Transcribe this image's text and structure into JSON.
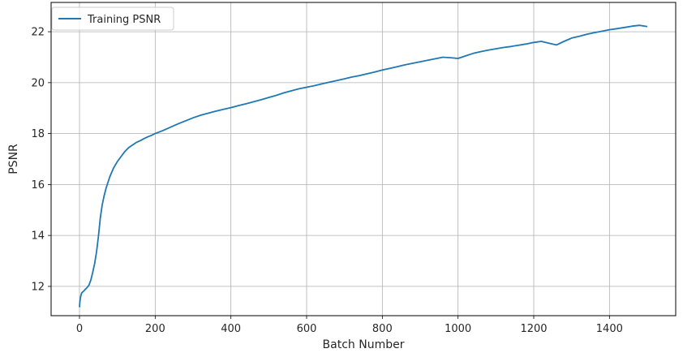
{
  "chart_data": {
    "type": "line",
    "xlabel": "Batch Number",
    "ylabel": "PSNR",
    "xlim": [
      -75,
      1575
    ],
    "ylim": [
      10.85,
      23.15
    ],
    "xticks": [
      0,
      200,
      400,
      600,
      800,
      1000,
      1200,
      1400
    ],
    "yticks": [
      12,
      14,
      16,
      18,
      20,
      22
    ],
    "xtick_labels": [
      "0",
      "200",
      "400",
      "600",
      "800",
      "1000",
      "1200",
      "1400"
    ],
    "ytick_labels": [
      "12",
      "14",
      "16",
      "18",
      "20",
      "22"
    ],
    "grid": true,
    "legend_position": "top-left",
    "series": [
      {
        "name": "Training PSNR",
        "color": "#1f77b4",
        "x": [
          0,
          1,
          3,
          6,
          10,
          15,
          20,
          25,
          30,
          35,
          40,
          45,
          50,
          55,
          60,
          65,
          70,
          80,
          90,
          100,
          110,
          120,
          130,
          140,
          150,
          160,
          170,
          180,
          190,
          200,
          220,
          240,
          260,
          280,
          300,
          320,
          340,
          360,
          380,
          400,
          420,
          440,
          460,
          480,
          500,
          520,
          540,
          560,
          580,
          600,
          620,
          640,
          660,
          680,
          700,
          720,
          740,
          760,
          780,
          800,
          820,
          840,
          860,
          880,
          900,
          920,
          940,
          960,
          980,
          1000,
          1020,
          1040,
          1060,
          1080,
          1100,
          1120,
          1140,
          1160,
          1180,
          1200,
          1220,
          1240,
          1260,
          1280,
          1300,
          1320,
          1340,
          1360,
          1380,
          1400,
          1420,
          1440,
          1460,
          1480,
          1500
        ],
        "y": [
          11.18,
          11.4,
          11.6,
          11.75,
          11.8,
          11.88,
          11.95,
          12.05,
          12.25,
          12.55,
          12.9,
          13.35,
          13.95,
          14.7,
          15.2,
          15.55,
          15.85,
          16.3,
          16.65,
          16.9,
          17.1,
          17.3,
          17.45,
          17.55,
          17.65,
          17.72,
          17.8,
          17.87,
          17.93,
          18.0,
          18.12,
          18.25,
          18.38,
          18.5,
          18.62,
          18.72,
          18.8,
          18.88,
          18.95,
          19.02,
          19.1,
          19.17,
          19.25,
          19.33,
          19.42,
          19.5,
          19.6,
          19.68,
          19.76,
          19.82,
          19.88,
          19.95,
          20.02,
          20.08,
          20.15,
          20.22,
          20.28,
          20.35,
          20.42,
          20.5,
          20.56,
          20.63,
          20.7,
          20.76,
          20.82,
          20.88,
          20.94,
          21.0,
          20.98,
          20.95,
          21.05,
          21.15,
          21.22,
          21.28,
          21.33,
          21.38,
          21.42,
          21.47,
          21.52,
          21.58,
          21.62,
          21.55,
          21.48,
          21.62,
          21.75,
          21.82,
          21.9,
          21.96,
          22.02,
          22.08,
          22.12,
          22.17,
          22.22,
          22.25,
          22.2
        ]
      }
    ]
  }
}
